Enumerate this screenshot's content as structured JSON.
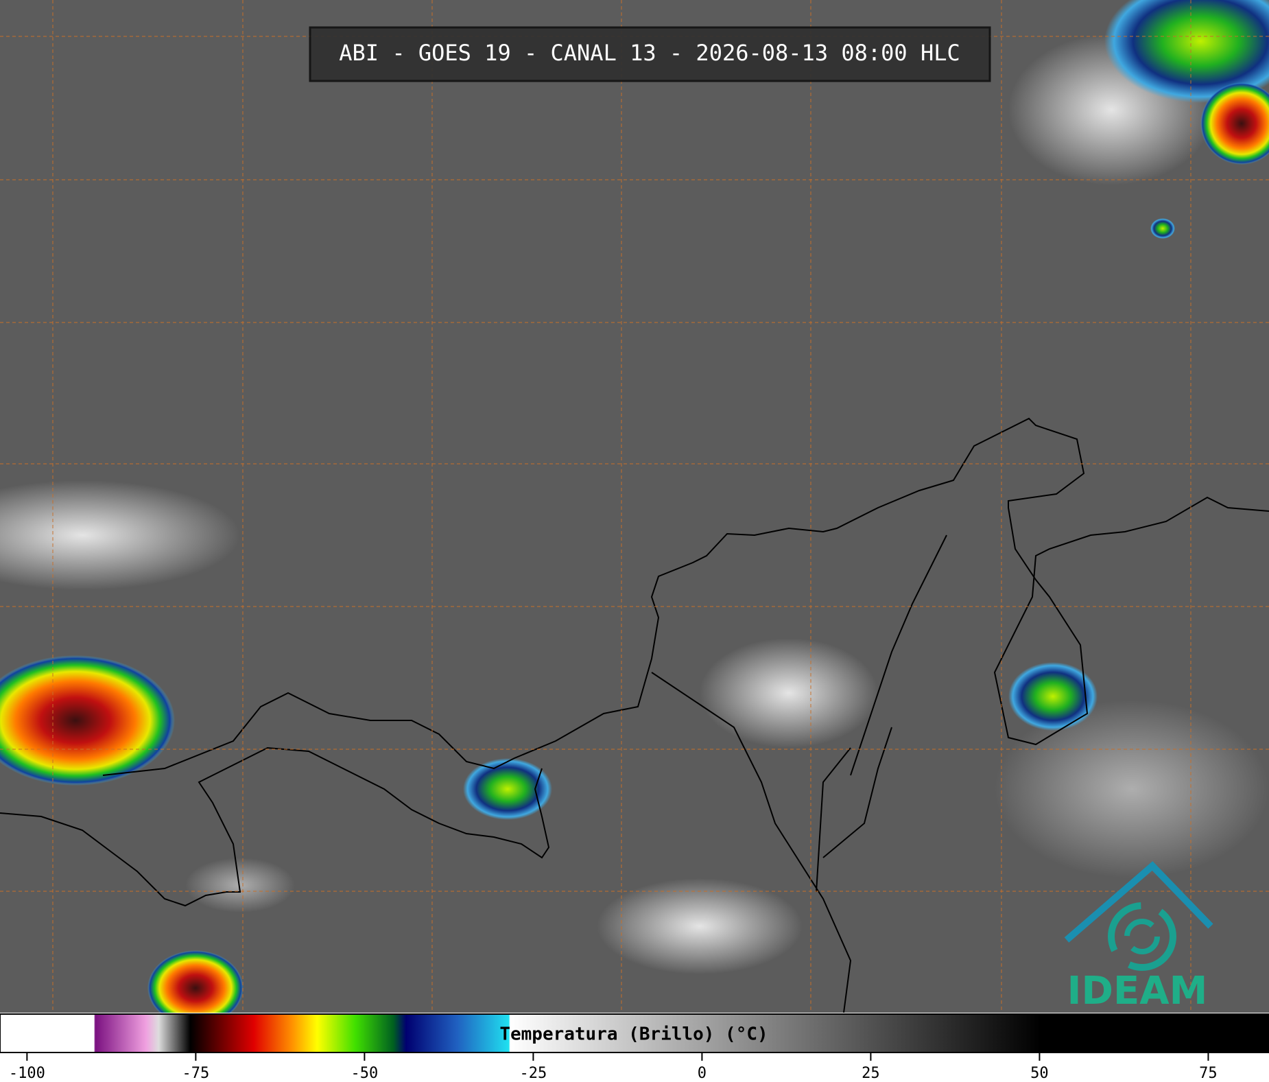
{
  "header": {
    "title": "ABI - GOES 19 - CANAL 13 - 2026-08-13 08:00 HLC"
  },
  "colorbar": {
    "label": "Temperatura (Brillo) (°C)",
    "xlim": [
      -104,
      84
    ],
    "ticks": [
      -100,
      -75,
      -50,
      -25,
      0,
      25,
      50,
      75
    ]
  },
  "logo": {
    "text": "IDEAM"
  }
}
